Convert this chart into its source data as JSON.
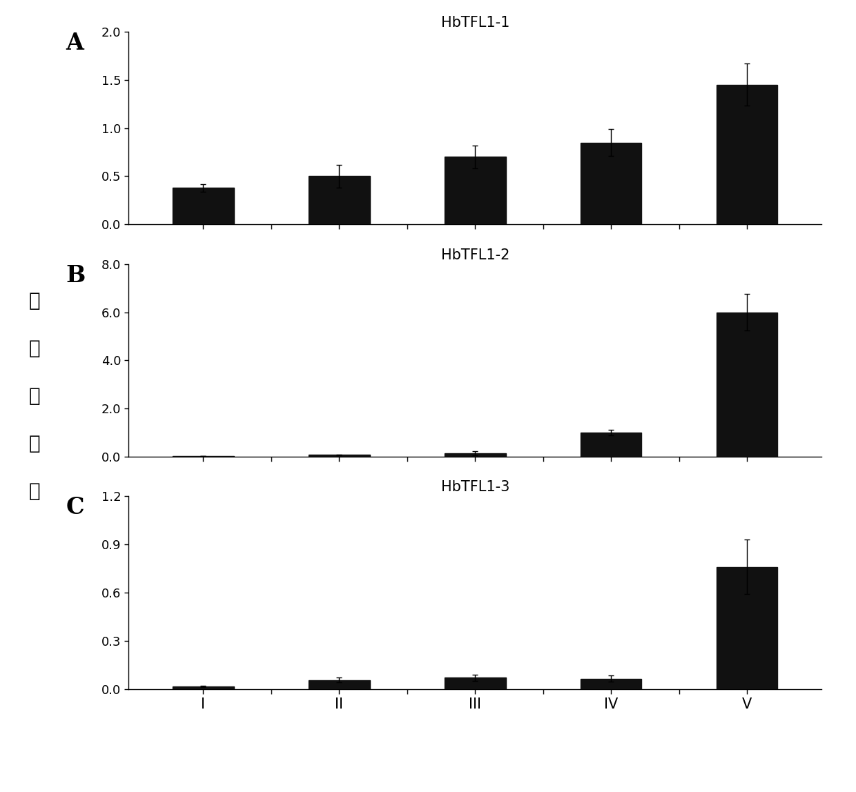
{
  "panels": [
    {
      "label": "A",
      "title": "HbTFL1-1",
      "categories": [
        "I",
        "II",
        "III",
        "IV",
        "V"
      ],
      "values": [
        0.38,
        0.5,
        0.7,
        0.85,
        1.45
      ],
      "errors": [
        0.04,
        0.12,
        0.12,
        0.14,
        0.22
      ],
      "ylim": [
        0,
        2.0
      ],
      "yticks": [
        0.0,
        0.5,
        1.0,
        1.5,
        2.0
      ],
      "yticklabels": [
        "0.0",
        "0.5",
        "1.0",
        "1.5",
        "2.0"
      ]
    },
    {
      "label": "B",
      "title": "HbTFL1-2",
      "categories": [
        "I",
        "II",
        "III",
        "IV",
        "V"
      ],
      "values": [
        0.03,
        0.08,
        0.15,
        1.0,
        6.0
      ],
      "errors": [
        0.005,
        0.01,
        0.08,
        0.12,
        0.75
      ],
      "ylim": [
        0,
        8.0
      ],
      "yticks": [
        0.0,
        2.0,
        4.0,
        6.0,
        8.0
      ],
      "yticklabels": [
        "0.0",
        "2.0",
        "4.0",
        "6.0",
        "8.0"
      ]
    },
    {
      "label": "C",
      "title": "HbTFL1-3",
      "categories": [
        "I",
        "II",
        "III",
        "IV",
        "V"
      ],
      "values": [
        0.015,
        0.055,
        0.07,
        0.065,
        0.76
      ],
      "errors": [
        0.005,
        0.015,
        0.02,
        0.02,
        0.17
      ],
      "ylim": [
        0,
        1.2
      ],
      "yticks": [
        0.0,
        0.3,
        0.6,
        0.9,
        1.2
      ],
      "yticklabels": [
        "0.0",
        "0.3",
        "0.6",
        "0.9",
        "1.2"
      ]
    }
  ],
  "ylabel": "相对表达量",
  "bar_color": "#111111",
  "background_color": "#ffffff",
  "bar_width": 0.45,
  "label_fontsize": 24,
  "title_fontsize": 15,
  "tick_fontsize": 13,
  "ylabel_fontsize": 20,
  "xlabel_fontsize": 15
}
